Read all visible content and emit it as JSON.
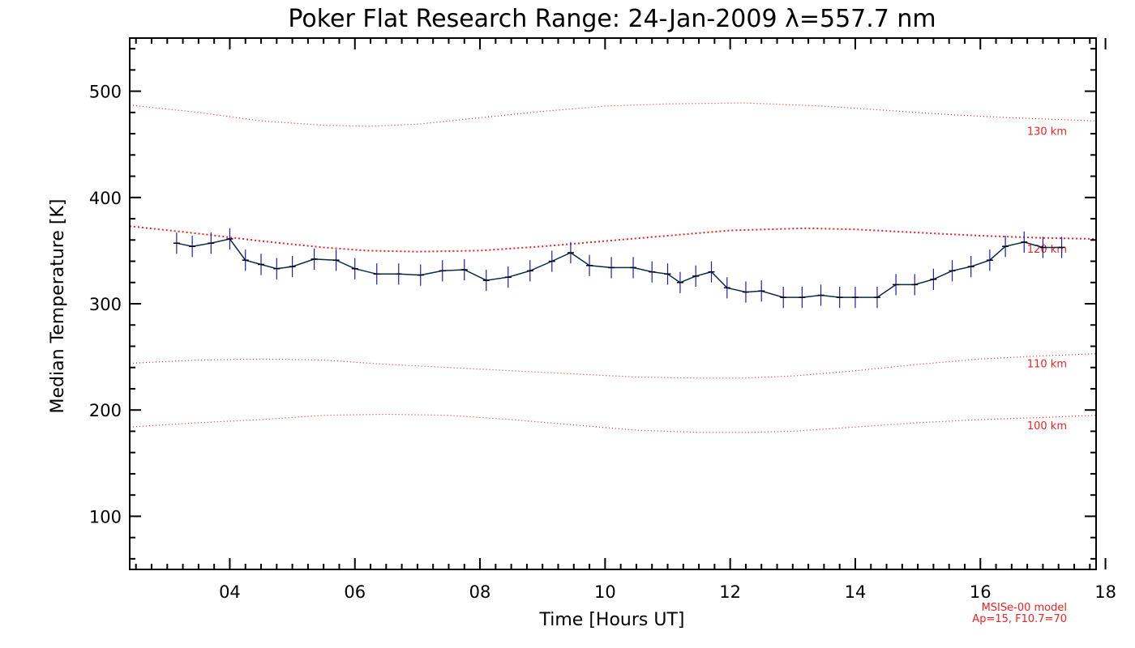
{
  "chart_data": {
    "type": "line",
    "title": "Poker Flat Research Range: 24-Jan-2009 λ=557.7 nm",
    "xlabel": "Time [Hours UT]",
    "ylabel": "Median Temperature [K]",
    "xlim": [
      2.4,
      17.85
    ],
    "ylim": [
      50,
      550
    ],
    "x_ticks": [
      4,
      6,
      8,
      10,
      12,
      14,
      16,
      18
    ],
    "x_tick_labels": [
      "04",
      "06",
      "08",
      "10",
      "12",
      "14",
      "16",
      "18"
    ],
    "y_ticks": [
      100,
      200,
      300,
      400,
      500
    ],
    "y_tick_labels": [
      "100",
      "200",
      "300",
      "400",
      "500"
    ],
    "series": [
      {
        "name": "Median Temperature",
        "color": "#0a2a4a",
        "error_color": "#1e1eb4",
        "x": [
          3.15,
          3.4,
          3.7,
          4.0,
          4.25,
          4.5,
          4.75,
          5.0,
          5.35,
          5.7,
          6.0,
          6.35,
          6.7,
          7.05,
          7.4,
          7.75,
          8.1,
          8.45,
          8.8,
          9.15,
          9.45,
          9.75,
          10.1,
          10.45,
          10.75,
          11.0,
          11.2,
          11.45,
          11.7,
          11.95,
          12.25,
          12.5,
          12.85,
          13.15,
          13.45,
          13.75,
          14.0,
          14.35,
          14.65,
          14.95,
          15.25,
          15.55,
          15.85,
          16.15,
          16.4,
          16.7,
          17.0,
          17.3
        ],
        "values": [
          357,
          354,
          357,
          361,
          341,
          337,
          333,
          335,
          342,
          341,
          333,
          328,
          328,
          327,
          331,
          332,
          322,
          325,
          331,
          340,
          348,
          336,
          334,
          334,
          330,
          328,
          320,
          326,
          330,
          315,
          311,
          312,
          306,
          306,
          308,
          306,
          306,
          306,
          318,
          318,
          323,
          331,
          335,
          341,
          354,
          358,
          353,
          353
        ],
        "errors": [
          10,
          10,
          10,
          10,
          10,
          10,
          10,
          10,
          10,
          10,
          10,
          10,
          10,
          10,
          10,
          10,
          10,
          10,
          10,
          10,
          10,
          10,
          10,
          10,
          10,
          10,
          10,
          10,
          10,
          10,
          10,
          10,
          10,
          10,
          10,
          10,
          10,
          10,
          10,
          10,
          10,
          10,
          10,
          10,
          10,
          10,
          10,
          10
        ]
      }
    ],
    "model_curves": [
      {
        "name": "130 km",
        "label": "130 km",
        "color": "#ee2222",
        "style": "sparse-dotted",
        "x": [
          2.4,
          3.5,
          4.5,
          5.5,
          6.2,
          7.0,
          8.0,
          9.0,
          10.0,
          11.0,
          12.2,
          13.5,
          14.5,
          15.5,
          16.5,
          17.85
        ],
        "values": [
          487,
          480,
          472,
          468,
          467,
          469,
          475,
          481,
          486,
          488,
          489,
          486,
          482,
          478,
          475,
          472
        ]
      },
      {
        "name": "120 km",
        "label": "120 km",
        "color": "#ee2222",
        "style": "bold-dotted",
        "x": [
          2.4,
          3.5,
          4.5,
          5.5,
          6.2,
          7.0,
          8.0,
          9.0,
          10.0,
          11.0,
          12.0,
          13.2,
          14.0,
          15.0,
          16.0,
          17.0,
          17.85
        ],
        "values": [
          373,
          366,
          359,
          353,
          350,
          349,
          350,
          354,
          359,
          364,
          369,
          371,
          370,
          367,
          364,
          362,
          361
        ]
      },
      {
        "name": "110 km",
        "label": "110 km",
        "color": "#ee2222",
        "style": "sparse-dotted",
        "x": [
          2.4,
          3.5,
          4.5,
          5.5,
          6.5,
          7.5,
          8.5,
          9.5,
          10.5,
          11.5,
          12.2,
          13.0,
          14.0,
          15.0,
          16.0,
          17.0,
          17.85
        ],
        "values": [
          244,
          247,
          248,
          247,
          243,
          240,
          237,
          234,
          231,
          230,
          230,
          232,
          237,
          243,
          248,
          251,
          253
        ]
      },
      {
        "name": "100 km",
        "label": "100 km",
        "color": "#ee2222",
        "style": "sparse-dotted",
        "x": [
          2.4,
          3.5,
          4.5,
          5.5,
          6.5,
          7.5,
          8.5,
          9.5,
          10.5,
          11.5,
          12.3,
          13.0,
          14.0,
          15.0,
          16.0,
          17.0,
          17.85
        ],
        "values": [
          184,
          188,
          191,
          195,
          196,
          195,
          191,
          186,
          181,
          179,
          179,
          180,
          184,
          188,
          191,
          193,
          195
        ]
      }
    ],
    "annotations": [
      "MSISe-00 model",
      "Ap=15, F10.7=70"
    ]
  }
}
